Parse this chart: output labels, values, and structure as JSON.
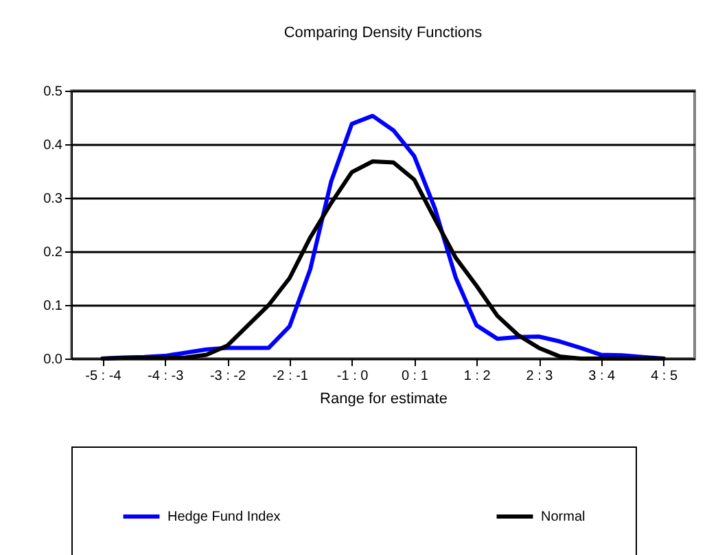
{
  "chart_data": {
    "type": "line",
    "title": "Comparing Density Functions",
    "xlabel": "Range for  estimate",
    "categories": [
      null,
      "-5 : -4",
      null,
      null,
      "-4 : -3",
      null,
      null,
      "-3 : -2",
      null,
      null,
      "-2 : -1",
      null,
      null,
      "-1 : 0",
      null,
      null,
      "0 : 1",
      null,
      null,
      "1 : 2",
      null,
      null,
      "2 : 3",
      null,
      null,
      "3 : 4",
      null,
      null,
      "4 : 5",
      null
    ],
    "ylim": [
      0,
      0.5
    ],
    "yticks": [
      {
        "value": 0,
        "label": "0.0"
      },
      0.1,
      0.2,
      0.3,
      0.4,
      0.5
    ],
    "grid": "y",
    "legend": "bottom",
    "line_style": "solid",
    "marker": "none",
    "series": [
      {
        "name": "Hedge Fund Index",
        "color": "#0000ff",
        "values": [
          null,
          0,
          0.002,
          0.003,
          0.005,
          0.011,
          0.017,
          0.02,
          0.02,
          0.02,
          0.06,
          0.167,
          0.33,
          0.438,
          0.453,
          0.426,
          0.378,
          0.28,
          0.151,
          0.062,
          0.037,
          0.04,
          0.041,
          0.032,
          0.02,
          0.007,
          0.006,
          0.003,
          0,
          null
        ]
      },
      {
        "name": "Normal",
        "color": "#000000",
        "values": [
          null,
          0,
          0.001,
          0.001,
          0.001,
          0.002,
          0.007,
          0.024,
          0.062,
          0.1,
          0.15,
          0.226,
          0.29,
          0.348,
          0.368,
          0.366,
          0.334,
          0.26,
          0.188,
          0.136,
          0.08,
          0.044,
          0.02,
          0.004,
          0,
          0,
          0,
          0,
          0,
          null
        ]
      }
    ]
  }
}
